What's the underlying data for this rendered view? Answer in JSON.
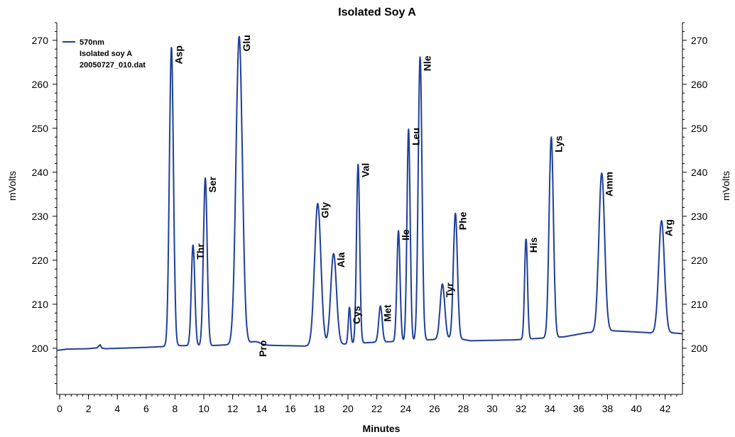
{
  "chart_data": {
    "type": "line",
    "title": "Isolated Soy A",
    "xlabel": "Minutes",
    "ylabel_left": "mVolts",
    "ylabel_right": "mVolts",
    "xlim": [
      -0.2,
      43.2
    ],
    "ylim": [
      189.5,
      274
    ],
    "x_ticks": [
      0,
      2,
      4,
      6,
      8,
      10,
      12,
      14,
      16,
      18,
      20,
      22,
      24,
      26,
      28,
      30,
      32,
      34,
      36,
      38,
      40,
      42
    ],
    "y_ticks": [
      200,
      210,
      220,
      230,
      240,
      250,
      260,
      270
    ],
    "legend": {
      "position": "top-left",
      "series_name": "570nm",
      "lines": [
        "Isolated soy A",
        "20050727_010.dat"
      ]
    },
    "color": "#1f3f9a",
    "baseline": [
      [
        -0.2,
        199.5
      ],
      [
        0.5,
        199.8
      ],
      [
        2.0,
        199.9
      ],
      [
        2.6,
        200.1
      ],
      [
        2.8,
        200.8
      ],
      [
        2.95,
        200.0
      ],
      [
        3.2,
        199.9
      ],
      [
        6.0,
        200.2
      ],
      [
        7.3,
        200.4
      ],
      [
        8.3,
        200.6
      ],
      [
        10.5,
        200.6
      ],
      [
        13.0,
        201.0
      ],
      [
        14.0,
        200.7
      ],
      [
        17.0,
        200.5
      ],
      [
        18.5,
        200.7
      ],
      [
        22.0,
        201.4
      ],
      [
        24.0,
        201.6
      ],
      [
        27.5,
        202.3
      ],
      [
        28.5,
        201.7
      ],
      [
        31.5,
        201.9
      ],
      [
        33.0,
        202.2
      ],
      [
        35.0,
        202.6
      ],
      [
        36.5,
        203.5
      ],
      [
        38.2,
        204.0
      ],
      [
        40.0,
        203.7
      ],
      [
        41.0,
        203.5
      ],
      [
        42.5,
        203.5
      ],
      [
        43.2,
        203.3
      ]
    ],
    "peaks": [
      {
        "label": "Asp",
        "x": 7.75,
        "y": 268.5,
        "width": 0.14
      },
      {
        "label": "Thr",
        "x": 9.25,
        "y": 223.5,
        "width": 0.12
      },
      {
        "label": "Ser",
        "x": 10.1,
        "y": 238.7,
        "width": 0.13
      },
      {
        "label": "Glu",
        "x": 12.45,
        "y": 270.9,
        "width": 0.22
      },
      {
        "label": "Pro",
        "x": 13.6,
        "y": 201.5,
        "width": 0.35
      },
      {
        "label": "Gly",
        "x": 17.9,
        "y": 232.9,
        "width": 0.22
      },
      {
        "label": "Ala",
        "x": 19.0,
        "y": 221.5,
        "width": 0.2
      },
      {
        "label": "Cys",
        "x": 20.1,
        "y": 209.3,
        "width": 0.08
      },
      {
        "label": "Val",
        "x": 20.7,
        "y": 241.8,
        "width": 0.11
      },
      {
        "label": "Met",
        "x": 22.25,
        "y": 209.6,
        "width": 0.12
      },
      {
        "label": "Ile",
        "x": 23.5,
        "y": 226.7,
        "width": 0.11
      },
      {
        "label": "Leu",
        "x": 24.2,
        "y": 249.8,
        "width": 0.11
      },
      {
        "label": "Nle",
        "x": 25.0,
        "y": 266.2,
        "width": 0.13
      },
      {
        "label": "Tyr",
        "x": 26.55,
        "y": 214.6,
        "width": 0.16
      },
      {
        "label": "Phe",
        "x": 27.45,
        "y": 230.7,
        "width": 0.14
      },
      {
        "label": "His",
        "x": 32.35,
        "y": 224.9,
        "width": 0.1
      },
      {
        "label": "Lys",
        "x": 34.1,
        "y": 248.0,
        "width": 0.15
      },
      {
        "label": "Amm",
        "x": 37.6,
        "y": 239.8,
        "width": 0.2
      },
      {
        "label": "Arg",
        "x": 41.75,
        "y": 229.0,
        "width": 0.2
      }
    ]
  }
}
